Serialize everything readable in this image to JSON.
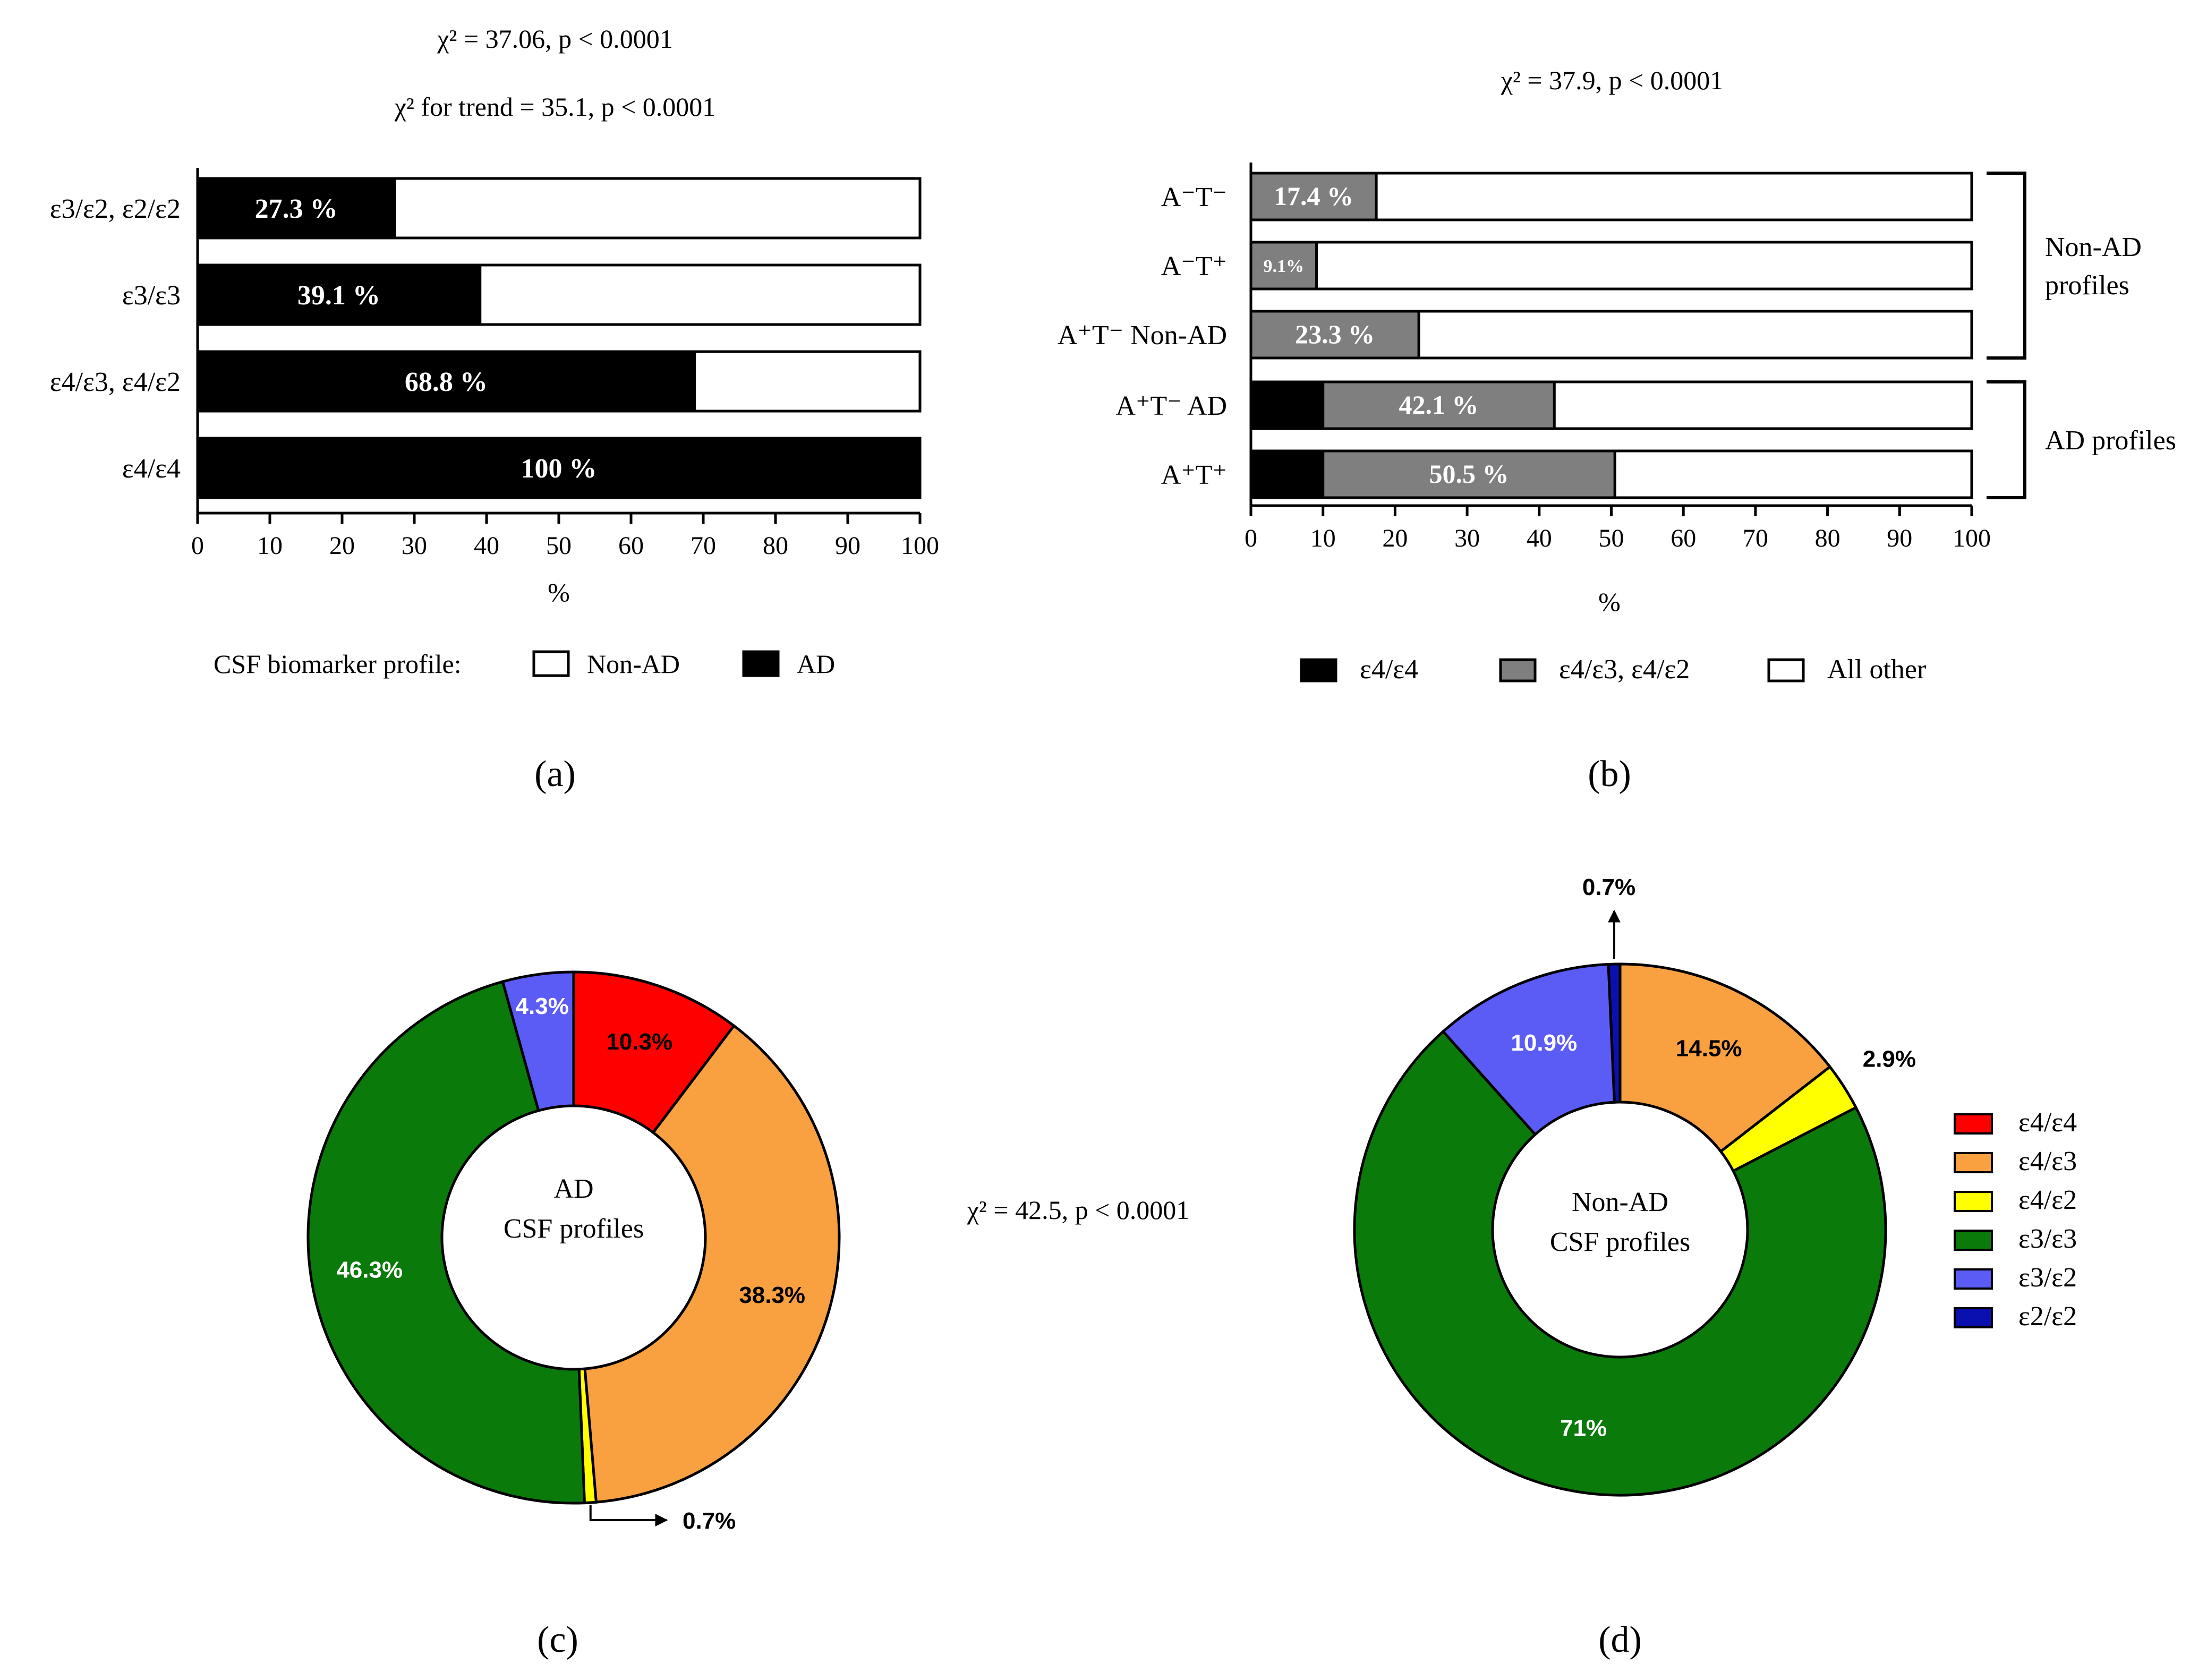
{
  "chart_data": [
    {
      "panel": "a",
      "type": "bar",
      "orientation": "horizontal",
      "stacked": true,
      "stat_line1": "χ² = 37.06, p < 0.0001",
      "stat_line2": "χ² for trend = 35.1, p < 0.0001",
      "categories": [
        "ε3/ε2, ε2/ε2",
        "ε3/ε3",
        "ε4/ε3, ε4/ε2",
        "ε4/ε4"
      ],
      "series": [
        {
          "name": "AD",
          "values": [
            27.3,
            39.1,
            68.8,
            100
          ],
          "color": "#000000"
        },
        {
          "name": "Non-AD",
          "values": [
            72.7,
            60.9,
            31.2,
            0
          ],
          "color": "#ffffff"
        }
      ],
      "data_labels": [
        "27.3 %",
        "39.1 %",
        "68.8 %",
        "100 %"
      ],
      "xlabel": "%",
      "xlim": [
        0,
        100
      ],
      "xticks": [
        "0",
        "10",
        "20",
        "30",
        "40",
        "50",
        "60",
        "70",
        "80",
        "90",
        "100"
      ],
      "legend_title": "CSF biomarker profile:",
      "legend": [
        {
          "label": "Non-AD",
          "color": "#ffffff"
        },
        {
          "label": "AD",
          "color": "#000000"
        }
      ],
      "caption": "(a)"
    },
    {
      "panel": "b",
      "type": "bar",
      "orientation": "horizontal",
      "stacked": true,
      "stat_line1": "χ² = 37.9, p < 0.0001",
      "categories": [
        "A⁻T⁻",
        "A⁻T⁺",
        "A⁺T⁻ Non-AD",
        "A⁺T⁻ AD",
        "A⁺T⁺"
      ],
      "series": [
        {
          "name": "ε4/ε4",
          "values": [
            0,
            0,
            0,
            10,
            10
          ],
          "color": "#000000"
        },
        {
          "name": "ε4/ε3, ε4/ε2",
          "values": [
            17.4,
            9.1,
            23.3,
            32.1,
            40.5
          ],
          "color": "#7f7f7f"
        },
        {
          "name": "All other",
          "values": [
            82.6,
            90.9,
            76.7,
            57.9,
            49.5
          ],
          "color": "#ffffff"
        }
      ],
      "data_labels": [
        "17.4 %",
        "9.1%",
        "23.3 %",
        "42.1 %",
        "50.5 %"
      ],
      "groups": [
        {
          "label_lines": [
            "Non-AD",
            "profiles"
          ],
          "rows": [
            0,
            2
          ]
        },
        {
          "label_lines": [
            "AD profiles"
          ],
          "rows": [
            3,
            4
          ]
        }
      ],
      "xlabel": "%",
      "xlim": [
        0,
        100
      ],
      "xticks": [
        "0",
        "10",
        "20",
        "30",
        "40",
        "50",
        "60",
        "70",
        "80",
        "90",
        "100"
      ],
      "legend": [
        {
          "label": "ε4/ε4",
          "color": "#000000"
        },
        {
          "label": "ε4/ε3, ε4/ε2",
          "color": "#7f7f7f"
        },
        {
          "label": "All other",
          "color": "#ffffff"
        }
      ],
      "caption": "(b)"
    },
    {
      "panel": "c",
      "type": "pie",
      "donut": true,
      "center_lines": [
        "AD",
        "CSF profiles"
      ],
      "slices": [
        {
          "label": "ε4/ε4",
          "value": 10.3,
          "color": "#ff0000",
          "text": "10.3%"
        },
        {
          "label": "ε4/ε3",
          "value": 38.3,
          "color": "#f9a040",
          "text": "38.3%"
        },
        {
          "label": "ε4/ε2",
          "value": 0.7,
          "color": "#ffff00",
          "text": "0.7%"
        },
        {
          "label": "ε3/ε3",
          "value": 46.3,
          "color": "#0a7a0a",
          "text": "46.3%"
        },
        {
          "label": "ε3/ε2",
          "value": 4.3,
          "color": "#5b5bf5",
          "text": "4.3%"
        }
      ],
      "caption": "(c)"
    },
    {
      "panel": "d",
      "type": "pie",
      "donut": true,
      "center_lines": [
        "Non-AD",
        "CSF profiles"
      ],
      "slices": [
        {
          "label": "ε4/ε3",
          "value": 14.5,
          "color": "#f9a040",
          "text": "14.5%"
        },
        {
          "label": "ε4/ε2",
          "value": 2.9,
          "color": "#ffff00",
          "text": "2.9%"
        },
        {
          "label": "ε3/ε3",
          "value": 71,
          "color": "#0a7a0a",
          "text": "71%"
        },
        {
          "label": "ε3/ε2",
          "value": 10.9,
          "color": "#5b5bf5",
          "text": "10.9%"
        },
        {
          "label": "ε2/ε2",
          "value": 0.7,
          "color": "#0a10b0",
          "text": "0.7%"
        }
      ],
      "caption": "(d)"
    }
  ],
  "pie_stat": "χ² = 42.5,  p < 0.0001",
  "pie_legend": [
    {
      "label": "ε4/ε4",
      "color": "#ff0000"
    },
    {
      "label": "ε4/ε3",
      "color": "#f9a040"
    },
    {
      "label": "ε4/ε2",
      "color": "#ffff00"
    },
    {
      "label": "ε3/ε3",
      "color": "#0a7a0a"
    },
    {
      "label": "ε3/ε2",
      "color": "#5b5bf5"
    },
    {
      "label": "ε2/ε2",
      "color": "#0a10b0"
    }
  ]
}
